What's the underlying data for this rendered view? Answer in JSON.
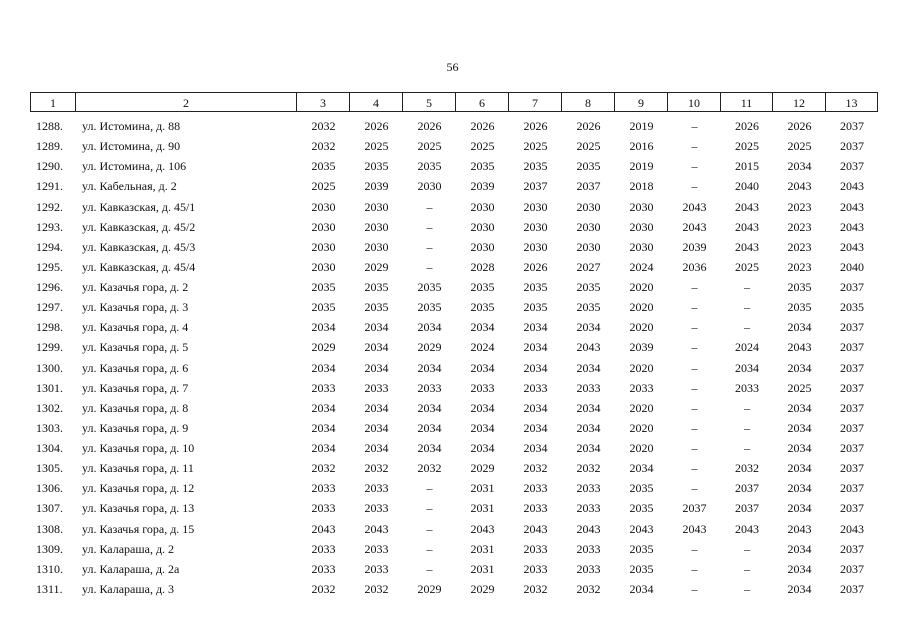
{
  "page_number": 56,
  "table": {
    "header": [
      1,
      2,
      3,
      4,
      5,
      6,
      7,
      8,
      9,
      10,
      11,
      12,
      13
    ],
    "rows": [
      [
        "1288.",
        "ул. Истомина, д. 88",
        2032,
        2026,
        2026,
        2026,
        2026,
        2026,
        2019,
        "–",
        2026,
        2026,
        2037
      ],
      [
        "1289.",
        "ул. Истомина, д. 90",
        2032,
        2025,
        2025,
        2025,
        2025,
        2025,
        2016,
        "–",
        2025,
        2025,
        2037
      ],
      [
        "1290.",
        "ул. Истомина, д. 106",
        2035,
        2035,
        2035,
        2035,
        2035,
        2035,
        2019,
        "–",
        2015,
        2034,
        2037
      ],
      [
        "1291.",
        "ул. Кабельная, д. 2",
        2025,
        2039,
        2030,
        2039,
        2037,
        2037,
        2018,
        "–",
        2040,
        2043,
        2043
      ],
      [
        "1292.",
        "ул. Кавказская, д. 45/1",
        2030,
        2030,
        "–",
        2030,
        2030,
        2030,
        2030,
        2043,
        2043,
        2023,
        2043
      ],
      [
        "1293.",
        "ул. Кавказская, д. 45/2",
        2030,
        2030,
        "–",
        2030,
        2030,
        2030,
        2030,
        2043,
        2043,
        2023,
        2043
      ],
      [
        "1294.",
        "ул. Кавказская, д. 45/3",
        2030,
        2030,
        "–",
        2030,
        2030,
        2030,
        2030,
        2039,
        2043,
        2023,
        2043
      ],
      [
        "1295.",
        "ул. Кавказская, д. 45/4",
        2030,
        2029,
        "–",
        2028,
        2026,
        2027,
        2024,
        2036,
        2025,
        2023,
        2040
      ],
      [
        "1296.",
        "ул. Казачья гора, д. 2",
        2035,
        2035,
        2035,
        2035,
        2035,
        2035,
        2020,
        "–",
        "–",
        2035,
        2037
      ],
      [
        "1297.",
        "ул. Казачья гора, д. 3",
        2035,
        2035,
        2035,
        2035,
        2035,
        2035,
        2020,
        "–",
        "–",
        2035,
        2035
      ],
      [
        "1298.",
        "ул. Казачья гора, д. 4",
        2034,
        2034,
        2034,
        2034,
        2034,
        2034,
        2020,
        "–",
        "–",
        2034,
        2037
      ],
      [
        "1299.",
        "ул. Казачья гора, д. 5",
        2029,
        2034,
        2029,
        2024,
        2034,
        2043,
        2039,
        "–",
        2024,
        2043,
        2037
      ],
      [
        "1300.",
        "ул. Казачья гора, д. 6",
        2034,
        2034,
        2034,
        2034,
        2034,
        2034,
        2020,
        "–",
        2034,
        2034,
        2037
      ],
      [
        "1301.",
        "ул. Казачья гора, д. 7",
        2033,
        2033,
        2033,
        2033,
        2033,
        2033,
        2033,
        "–",
        2033,
        2025,
        2037
      ],
      [
        "1302.",
        "ул. Казачья гора, д. 8",
        2034,
        2034,
        2034,
        2034,
        2034,
        2034,
        2020,
        "–",
        "–",
        2034,
        2037
      ],
      [
        "1303.",
        "ул. Казачья гора, д. 9",
        2034,
        2034,
        2034,
        2034,
        2034,
        2034,
        2020,
        "–",
        "–",
        2034,
        2037
      ],
      [
        "1304.",
        "ул. Казачья гора, д. 10",
        2034,
        2034,
        2034,
        2034,
        2034,
        2034,
        2020,
        "–",
        "–",
        2034,
        2037
      ],
      [
        "1305.",
        "ул. Казачья гора, д. 11",
        2032,
        2032,
        2032,
        2029,
        2032,
        2032,
        2034,
        "–",
        2032,
        2034,
        2037
      ],
      [
        "1306.",
        "ул. Казачья гора, д. 12",
        2033,
        2033,
        "–",
        2031,
        2033,
        2033,
        2035,
        "–",
        2037,
        2034,
        2037
      ],
      [
        "1307.",
        "ул. Казачья гора, д. 13",
        2033,
        2033,
        "–",
        2031,
        2033,
        2033,
        2035,
        2037,
        2037,
        2034,
        2037
      ],
      [
        "1308.",
        "ул. Казачья гора, д. 15",
        2043,
        2043,
        "–",
        2043,
        2043,
        2043,
        2043,
        2043,
        2043,
        2043,
        2043
      ],
      [
        "1309.",
        "ул. Калараша, д. 2",
        2033,
        2033,
        "–",
        2031,
        2033,
        2033,
        2035,
        "–",
        "–",
        2034,
        2037
      ],
      [
        "1310.",
        "ул. Калараша, д. 2а",
        2033,
        2033,
        "–",
        2031,
        2033,
        2033,
        2035,
        "–",
        "–",
        2034,
        2037
      ],
      [
        "1311.",
        "ул. Калараша, д. 3",
        2032,
        2032,
        2029,
        2029,
        2032,
        2032,
        2034,
        "–",
        "–",
        2034,
        2037
      ]
    ]
  }
}
